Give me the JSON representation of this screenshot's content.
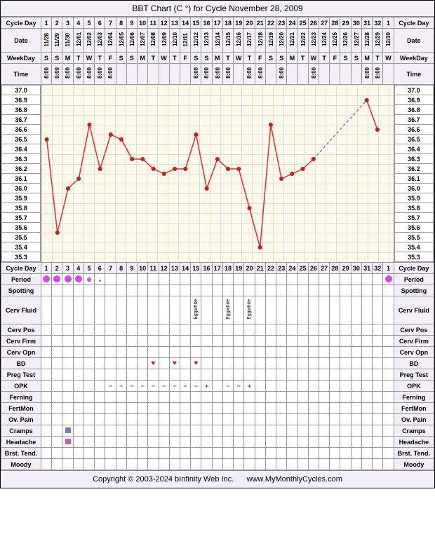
{
  "title": "BBT Chart (C °) for Cycle November 28, 2009",
  "footer_left": "Copyright © 2003-2024 bInfinity Web Inc.",
  "footer_right": "www.MyMonthlyCycles.com",
  "labels": {
    "cycle_day": "Cycle Day",
    "date": "Date",
    "weekday": "WeekDay",
    "time": "Time",
    "period": "Period",
    "spotting": "Spotting",
    "cerv_fluid": "Cerv Fluid",
    "cerv_pos": "Cerv Pos",
    "cerv_firm": "Cerv Firm",
    "cerv_opn": "Cerv Opn",
    "bd": "BD",
    "preg_test": "Preg Test",
    "opk": "OPK",
    "ferning": "Ferning",
    "fertmon": "FertMon",
    "ov_pain": "Ov. Pain",
    "cramps": "Cramps",
    "headache": "Headache",
    "brst_tend": "Brst. Tend.",
    "moody": "Moody"
  },
  "cycle_days": [
    1,
    2,
    3,
    4,
    5,
    6,
    7,
    8,
    9,
    10,
    11,
    12,
    13,
    14,
    15,
    16,
    17,
    18,
    19,
    20,
    21,
    22,
    23,
    24,
    25,
    26,
    27,
    28,
    29,
    30,
    31,
    32,
    1
  ],
  "dates": [
    "11/28",
    "11/29",
    "11/30",
    "12/01",
    "12/02",
    "12/03",
    "12/04",
    "12/05",
    "12/06",
    "12/07",
    "12/08",
    "12/09",
    "12/10",
    "12/11",
    "12/12",
    "12/13",
    "12/14",
    "12/15",
    "12/16",
    "12/17",
    "12/18",
    "12/19",
    "12/20",
    "12/21",
    "12/22",
    "12/23",
    "12/24",
    "12/25",
    "12/26",
    "12/27",
    "12/28",
    "12/29",
    "12/30"
  ],
  "weekdays": [
    "S",
    "S",
    "M",
    "T",
    "W",
    "T",
    "F",
    "S",
    "S",
    "M",
    "T",
    "W",
    "T",
    "F",
    "S",
    "S",
    "M",
    "T",
    "W",
    "T",
    "F",
    "S",
    "S",
    "M",
    "T",
    "W",
    "T",
    "F",
    "S",
    "S",
    "M",
    "T",
    "W"
  ],
  "times": [
    "8:00",
    "9:00",
    "8:00",
    "8:00",
    "8:00",
    "8:00",
    "8:00",
    "",
    "",
    "",
    "",
    "",
    "",
    "",
    "8:00",
    "8:00",
    "8:00",
    "8:00",
    "",
    "8:00",
    "8:00",
    "",
    "8:00",
    "",
    "",
    "8:00",
    "",
    "",
    "",
    "",
    "8:00",
    "8:00",
    ""
  ],
  "temp_scale": [
    37.0,
    36.9,
    36.8,
    36.7,
    36.6,
    36.5,
    36.4,
    36.3,
    36.2,
    36.1,
    36.0,
    35.9,
    35.8,
    35.7,
    35.6,
    35.5,
    35.4,
    35.3
  ],
  "chart": {
    "ylim": [
      35.3,
      37.0
    ],
    "line_color": "#e03030",
    "marker_color": "#c02020",
    "marker_radius": 3,
    "dashed_color": "#6b7fc7",
    "background_color": "#fdf9e8",
    "grid_color": "#dddddd",
    "points": [
      {
        "day": 1,
        "temp": 36.5
      },
      {
        "day": 2,
        "temp": 35.55
      },
      {
        "day": 3,
        "temp": 36.0
      },
      {
        "day": 4,
        "temp": 36.1
      },
      {
        "day": 5,
        "temp": 36.65
      },
      {
        "day": 6,
        "temp": 36.2
      },
      {
        "day": 7,
        "temp": 36.55
      },
      {
        "day": 8,
        "temp": 36.5
      },
      {
        "day": 9,
        "temp": 36.3
      },
      {
        "day": 10,
        "temp": 36.3
      },
      {
        "day": 11,
        "temp": 36.2
      },
      {
        "day": 12,
        "temp": 36.15
      },
      {
        "day": 13,
        "temp": 36.2
      },
      {
        "day": 14,
        "temp": 36.2
      },
      {
        "day": 15,
        "temp": 36.55
      },
      {
        "day": 16,
        "temp": 36.0
      },
      {
        "day": 17,
        "temp": 36.3
      },
      {
        "day": 18,
        "temp": 36.2
      },
      {
        "day": 19,
        "temp": 36.2
      },
      {
        "day": 20,
        "temp": 35.8
      },
      {
        "day": 21,
        "temp": 35.4
      },
      {
        "day": 22,
        "temp": 36.65
      },
      {
        "day": 23,
        "temp": 36.1
      },
      {
        "day": 24,
        "temp": 36.15
      },
      {
        "day": 25,
        "temp": 36.2
      },
      {
        "day": 26,
        "temp": 36.3
      }
    ],
    "dashed_points": [
      {
        "day": 26,
        "temp": 36.3
      },
      {
        "day": 31,
        "temp": 36.9
      }
    ],
    "extra_points": [
      {
        "day": 31,
        "temp": 36.9
      },
      {
        "day": 32,
        "temp": 36.6
      }
    ]
  },
  "period": {
    "1": "lg",
    "2": "lg",
    "3": "lg",
    "4": "lg",
    "5": "sm",
    "6": "xs",
    "33": "lg"
  },
  "cerv_fluid": {
    "15": "Eggwhite",
    "18": "Eggwhite",
    "20": "Eggwhite"
  },
  "bd": {
    "11": "♥",
    "13": "♥",
    "15": "♥"
  },
  "opk": {
    "7": "−",
    "8": "−",
    "9": "−",
    "10": "−",
    "11": "−",
    "12": "−",
    "13": "−",
    "14": "−",
    "15": "−",
    "16": "+",
    "18": "−",
    "19": "−",
    "20": "+"
  },
  "cramps": {
    "3": true
  },
  "headache": {
    "3": true
  }
}
